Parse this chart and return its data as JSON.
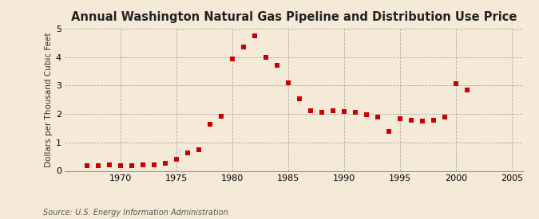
{
  "title": "Annual Washington Natural Gas Pipeline and Distribution Use Price",
  "ylabel": "Dollars per Thousand Cubic Feet",
  "source": "Source: U.S. Energy Information Administration",
  "background_color": "#f5ead8",
  "marker_color": "#cc0000",
  "xlim": [
    1965,
    2006
  ],
  "ylim": [
    0,
    5
  ],
  "xticks": [
    1970,
    1975,
    1980,
    1985,
    1990,
    1995,
    2000,
    2005
  ],
  "yticks": [
    0,
    1,
    2,
    3,
    4,
    5
  ],
  "years": [
    1967,
    1968,
    1969,
    1970,
    1971,
    1972,
    1973,
    1974,
    1975,
    1976,
    1977,
    1978,
    1979,
    1980,
    1981,
    1982,
    1983,
    1984,
    1985,
    1986,
    1987,
    1988,
    1989,
    1990,
    1991,
    1992,
    1993,
    1994,
    1995,
    1996,
    1997,
    1998,
    1999,
    2000,
    2001
  ],
  "values": [
    0.19,
    0.19,
    0.2,
    0.19,
    0.19,
    0.2,
    0.22,
    0.27,
    0.4,
    0.63,
    0.75,
    1.65,
    1.92,
    3.93,
    4.35,
    4.73,
    3.99,
    3.7,
    3.08,
    2.52,
    2.1,
    2.05,
    2.1,
    2.08,
    2.05,
    1.98,
    1.9,
    1.38,
    1.82,
    1.77,
    1.75,
    1.78,
    1.9,
    3.06,
    2.83
  ],
  "title_fontsize": 10.5,
  "ylabel_fontsize": 7.5,
  "tick_fontsize": 8,
  "source_fontsize": 7,
  "marker_size": 14
}
